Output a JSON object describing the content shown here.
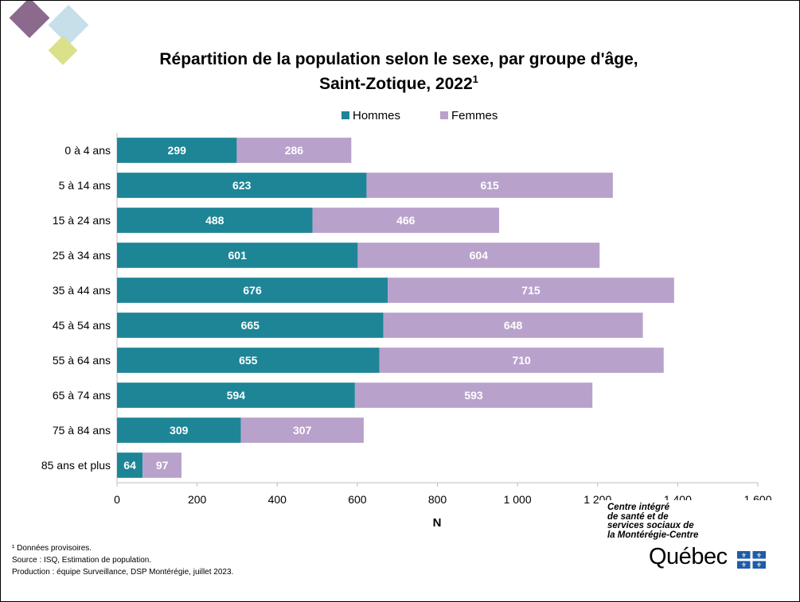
{
  "colors": {
    "hommes": "#1d8596",
    "femmes": "#b8a2cb",
    "axis": "#bfbfbf",
    "deco_purple": "#8b6a8e",
    "deco_blue": "#c7dfe8",
    "deco_lime": "#dbe08a",
    "flag_blue": "#1f5ca8"
  },
  "chart_data": {
    "type": "bar",
    "orientation": "horizontal",
    "stacked": true,
    "title_line1": "Répartition de la population selon le sexe, par groupe d'âge,",
    "title_line2": "Saint-Zotique, 2022",
    "title_superscript": "1",
    "xlabel": "N",
    "xlim": [
      0,
      1600
    ],
    "x_ticks": [
      0,
      200,
      400,
      600,
      800,
      1000,
      1200,
      1400,
      1600
    ],
    "x_tick_labels": [
      "0",
      "200",
      "400",
      "600",
      "800",
      "1 000",
      "1 200",
      "1 400",
      "1 600"
    ],
    "legend_position": "top",
    "categories": [
      "0 à 4 ans",
      "5 à 14 ans",
      "15 à 24 ans",
      "25 à 34 ans",
      "35 à 44 ans",
      "45 à 54 ans",
      "55 à 64 ans",
      "65 à 74 ans",
      "75 à 84 ans",
      "85 ans et plus"
    ],
    "series": [
      {
        "name": "Hommes",
        "values": [
          299,
          623,
          488,
          601,
          676,
          665,
          655,
          594,
          309,
          64
        ]
      },
      {
        "name": "Femmes",
        "values": [
          286,
          615,
          466,
          604,
          715,
          648,
          710,
          593,
          307,
          97
        ]
      }
    ]
  },
  "footnotes": {
    "note": "¹ Données provisoires.",
    "source": "Source : ISQ, Estimation de population.",
    "production": "Production : équipe Surveillance, DSP Montérégie, juillet 2023."
  },
  "organization": {
    "name_lines": [
      "Centre intégré",
      "de santé et de",
      "services sociaux de",
      "la Montérégie-Centre"
    ],
    "wordmark": "Québec",
    "flag_icon": "fleur-de-lis-flag-icon"
  }
}
